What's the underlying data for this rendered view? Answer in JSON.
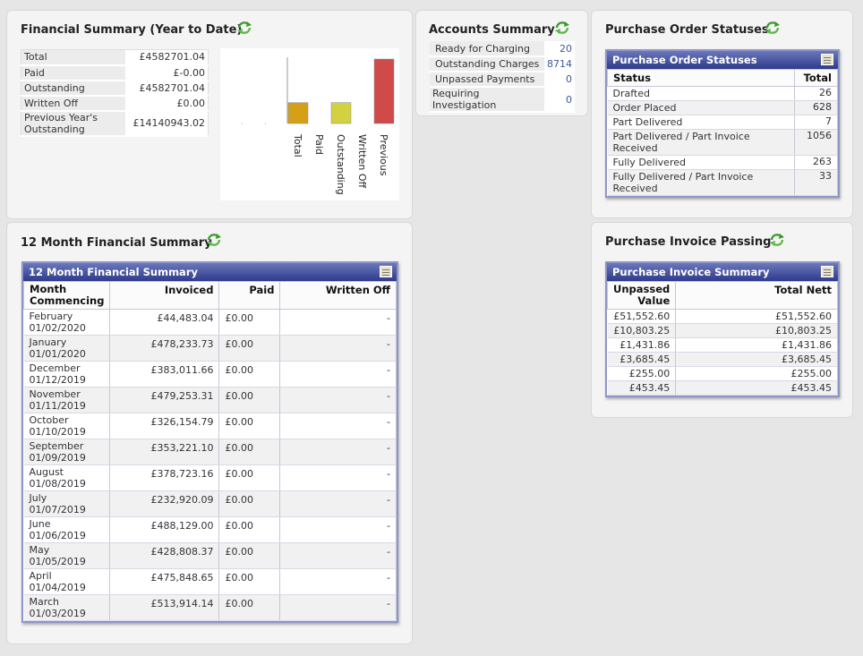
{
  "financial_summary": {
    "title": "Financial Summary (Year to Date)",
    "rows": [
      {
        "label": "Total",
        "value": "£4582701.04"
      },
      {
        "label": "Paid",
        "value": "£-0.00"
      },
      {
        "label": "Outstanding",
        "value": "£4582701.04"
      },
      {
        "label": "Written Off",
        "value": "£0.00"
      },
      {
        "label": "Previous Year's Outstanding",
        "value": "£14140943.02"
      }
    ]
  },
  "chart_data": {
    "type": "bar",
    "categories": [
      "Total",
      "Paid",
      "Outstanding",
      "Written Off",
      "Previous"
    ],
    "values": [
      4582701.04,
      0,
      4582701.04,
      0,
      14140943.02
    ],
    "colors": [
      "#d4a017",
      "#c8c8c8",
      "#d3d13f",
      "#c8c8c8",
      "#d04a4a"
    ],
    "title": "",
    "xlabel": "",
    "ylabel": ""
  },
  "accounts_summary": {
    "title": "Accounts Summary",
    "rows": [
      {
        "label": "Ready for Charging",
        "value": "20"
      },
      {
        "label": "Outstanding Charges",
        "value": "8714"
      },
      {
        "label": "Unpassed Payments",
        "value": "0"
      },
      {
        "label": "Requiring Investigation",
        "value": "0"
      }
    ]
  },
  "po_statuses": {
    "title": "Purchase Order Statuses",
    "grid_title": "Purchase Order Statuses",
    "headers": [
      "Status",
      "Total"
    ],
    "rows": [
      {
        "status": "Drafted",
        "total": "26"
      },
      {
        "status": "Order Placed",
        "total": "628"
      },
      {
        "status": "Part Delivered",
        "total": "7"
      },
      {
        "status": "Part Delivered / Part Invoice Received",
        "total": "1056"
      },
      {
        "status": "Fully Delivered",
        "total": "263"
      },
      {
        "status": "Fully Delivered / Part Invoice Received",
        "total": "33"
      }
    ]
  },
  "twelve_month": {
    "title": "12 Month Financial Summary",
    "grid_title": "12 Month Financial Summary",
    "headers": [
      "Month Commencing",
      "Invoiced",
      "Paid",
      "Written Off"
    ],
    "rows": [
      {
        "month": "February",
        "date": "01/02/2020",
        "invoiced": "£44,483.04",
        "paid": "£0.00",
        "written_off": "-"
      },
      {
        "month": "January",
        "date": "01/01/2020",
        "invoiced": "£478,233.73",
        "paid": "£0.00",
        "written_off": "-"
      },
      {
        "month": "December",
        "date": "01/12/2019",
        "invoiced": "£383,011.66",
        "paid": "£0.00",
        "written_off": "-"
      },
      {
        "month": "November",
        "date": "01/11/2019",
        "invoiced": "£479,253.31",
        "paid": "£0.00",
        "written_off": "-"
      },
      {
        "month": "October",
        "date": "01/10/2019",
        "invoiced": "£326,154.79",
        "paid": "£0.00",
        "written_off": "-"
      },
      {
        "month": "September",
        "date": "01/09/2019",
        "invoiced": "£353,221.10",
        "paid": "£0.00",
        "written_off": "-"
      },
      {
        "month": "August",
        "date": "01/08/2019",
        "invoiced": "£378,723.16",
        "paid": "£0.00",
        "written_off": "-"
      },
      {
        "month": "July",
        "date": "01/07/2019",
        "invoiced": "£232,920.09",
        "paid": "£0.00",
        "written_off": "-"
      },
      {
        "month": "June",
        "date": "01/06/2019",
        "invoiced": "£488,129.00",
        "paid": "£0.00",
        "written_off": "-"
      },
      {
        "month": "May",
        "date": "01/05/2019",
        "invoiced": "£428,808.37",
        "paid": "£0.00",
        "written_off": "-"
      },
      {
        "month": "April",
        "date": "01/04/2019",
        "invoiced": "£475,848.65",
        "paid": "£0.00",
        "written_off": "-"
      },
      {
        "month": "March",
        "date": "01/03/2019",
        "invoiced": "£513,914.14",
        "paid": "£0.00",
        "written_off": "-"
      }
    ]
  },
  "invoice_passing": {
    "title": "Purchase Invoice Passing",
    "grid_title": "Purchase Invoice Summary",
    "headers": [
      "Unpassed Value",
      "Total Nett"
    ],
    "rows": [
      {
        "unpassed": "£51,552.60",
        "total": "£51,552.60"
      },
      {
        "unpassed": "£10,803.25",
        "total": "£10,803.25"
      },
      {
        "unpassed": "£1,431.86",
        "total": "£1,431.86"
      },
      {
        "unpassed": "£3,685.45",
        "total": "£3,685.45"
      },
      {
        "unpassed": "£255.00",
        "total": "£255.00"
      },
      {
        "unpassed": "£453.45",
        "total": "£453.45"
      }
    ]
  },
  "icons": {
    "refresh": "refresh-icon",
    "grid_options": "grid-options-icon"
  }
}
